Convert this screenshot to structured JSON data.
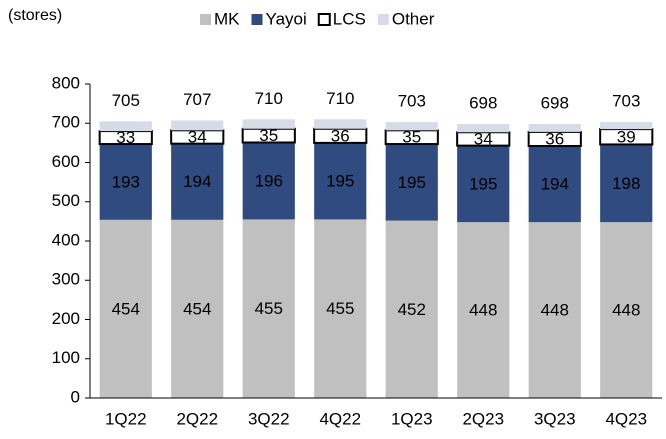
{
  "chart_data": {
    "type": "stacked_bar",
    "unit_label": "(stores)",
    "categories": [
      "1Q22",
      "2Q22",
      "3Q22",
      "4Q22",
      "1Q23",
      "2Q23",
      "3Q23",
      "4Q23"
    ],
    "series": [
      {
        "name": "MK",
        "color": "#c0c0c0",
        "values": [
          454,
          454,
          455,
          455,
          452,
          448,
          448,
          448
        ]
      },
      {
        "name": "Yayoi",
        "color": "#2f4b7f",
        "values": [
          193,
          194,
          196,
          195,
          195,
          195,
          194,
          198
        ]
      },
      {
        "name": "LCS",
        "color": "#ffffff",
        "values": [
          33,
          34,
          35,
          36,
          35,
          34,
          36,
          39
        ]
      },
      {
        "name": "Other",
        "color": "#d6dbe8",
        "values": [
          25,
          25,
          24,
          24,
          21,
          21,
          20,
          18
        ]
      }
    ],
    "totals": [
      705,
      707,
      710,
      710,
      703,
      698,
      698,
      703
    ],
    "ylim": [
      0,
      800
    ],
    "yticks": [
      0,
      100,
      200,
      300,
      400,
      500,
      600,
      700,
      800
    ]
  }
}
